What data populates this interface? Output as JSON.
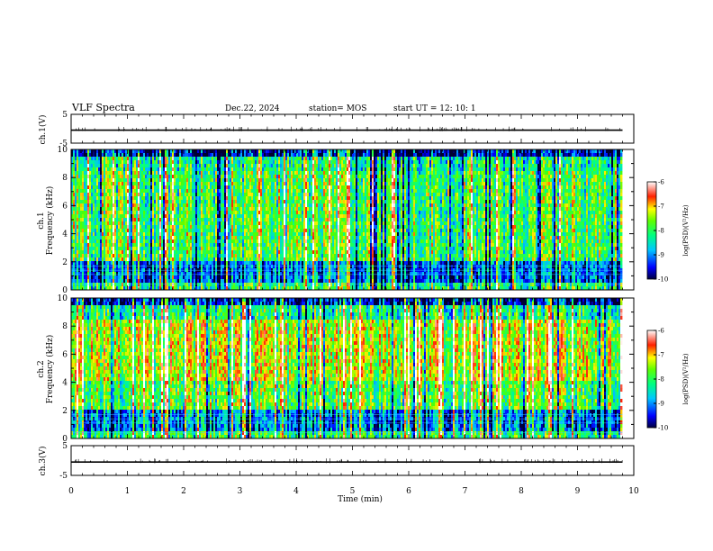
{
  "header": {
    "title": "VLF Spectra",
    "date": "Dec.22, 2024",
    "station": "station= MOS",
    "start": "start  UT =   12: 10: 1"
  },
  "chart_data": [
    {
      "type": "line",
      "panel": "ch1-voltage",
      "ylabel": "ch.1(V)",
      "ylim": [
        -5,
        5
      ],
      "yticks": [
        "5",
        "-5"
      ],
      "xlim": [
        0,
        10
      ],
      "series": [
        {
          "x": [
            0,
            9.8
          ],
          "y": [
            -0.5,
            -0.5
          ]
        }
      ]
    },
    {
      "type": "heatmap",
      "panel": "ch1-spectrogram",
      "ylabel": "ch.1\nFrequency (kHz)",
      "ylim": [
        0,
        10
      ],
      "yticks": [
        "0",
        "2",
        "4",
        "6",
        "8",
        "10"
      ],
      "xlim": [
        0,
        10
      ],
      "data_extent_min": 9.8,
      "colorbar": {
        "label": "log(PSD)(V²/Hz)",
        "range": [
          -10,
          -6
        ],
        "ticks": [
          "-6",
          "-7",
          "-8",
          "-9",
          "-10"
        ]
      }
    },
    {
      "type": "heatmap",
      "panel": "ch2-spectrogram",
      "ylabel": "ch.2\nFrequency (kHz)",
      "ylim": [
        0,
        10
      ],
      "yticks": [
        "0",
        "2",
        "4",
        "6",
        "8",
        "10"
      ],
      "xlim": [
        0,
        10
      ],
      "data_extent_min": 9.8,
      "colorbar": {
        "label": "log(PSD)(V²/Hz)",
        "range": [
          -10,
          -6
        ],
        "ticks": [
          "-6",
          "-7",
          "-8",
          "-9",
          "-10"
        ]
      }
    },
    {
      "type": "line",
      "panel": "ch3-voltage",
      "ylabel": "ch.3(V)",
      "ylim": [
        -5,
        5
      ],
      "yticks": [
        "5",
        "-5"
      ],
      "xlim": [
        0,
        10
      ],
      "series": [
        {
          "x": [
            0,
            9.8
          ],
          "y": [
            -0.5,
            -0.5
          ]
        }
      ]
    }
  ],
  "xaxis": {
    "label": "Time (min)",
    "ticks": [
      "0",
      "1",
      "2",
      "3",
      "4",
      "5",
      "6",
      "7",
      "8",
      "9",
      "10"
    ]
  }
}
